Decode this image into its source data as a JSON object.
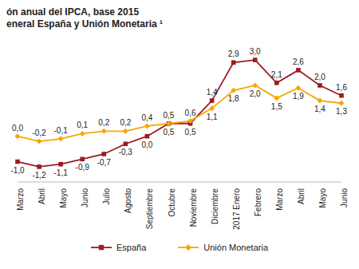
{
  "chart_data": {
    "type": "line",
    "title": "ón anual del IPCA, base 2015",
    "subtitle": "eneral España y Unión Monetaria ¹",
    "categories": [
      "Marzo",
      "Abril",
      "Mayo",
      "Junio",
      "Julio",
      "Agosto",
      "Septiembre",
      "Octubre",
      "Noviembre",
      "Diciembre",
      "2017 Enero",
      "Febrero",
      "Marzo",
      "Abril",
      "Mayo",
      "Junio"
    ],
    "series": [
      {
        "name": "España",
        "color": "#9b1b23",
        "marker": "square",
        "values": [
          -1.0,
          -1.2,
          -1.1,
          -0.9,
          -0.7,
          -0.3,
          0.0,
          0.5,
          0.5,
          1.4,
          2.9,
          3.0,
          2.1,
          2.6,
          2.0,
          1.6
        ],
        "value_labels": [
          "-1,0",
          "-1,2",
          "-1,1",
          "-0,9",
          "-0,7",
          "-0,3",
          "0,0",
          "0,5",
          "0,5",
          "1,4",
          "2,9",
          "3,0",
          "2,1",
          "2,6",
          "2,0",
          "1,6"
        ]
      },
      {
        "name": "Unión Monetaria",
        "color": "#f5a800",
        "marker": "diamond",
        "values": [
          0.0,
          -0.2,
          -0.1,
          0.1,
          0.2,
          0.2,
          0.4,
          0.5,
          0.6,
          1.1,
          1.8,
          2.0,
          1.5,
          1.9,
          1.4,
          1.3
        ],
        "value_labels": [
          "0,0",
          "-0,2",
          "-0,1",
          "0,1",
          "0,2",
          "0,2",
          "0,4",
          "0,5",
          "0,6",
          "1,1",
          "1,8",
          "2,0",
          "1,5",
          "1,9",
          "1,4",
          "1,3"
        ]
      }
    ],
    "ylim": [
      -1.8,
      3.6
    ],
    "tick_labels": "x",
    "grid": false,
    "data_labels": true,
    "legend": "bottom"
  }
}
